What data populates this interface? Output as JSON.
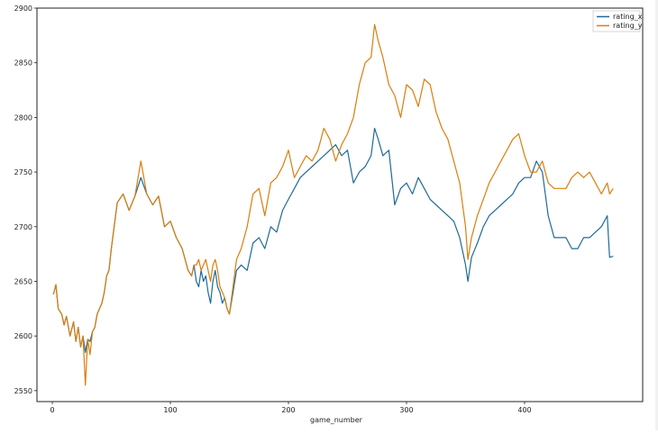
{
  "chart_data": {
    "type": "line",
    "title": "",
    "xlabel": "game_number",
    "ylabel": "",
    "xlim": [
      -13,
      500
    ],
    "ylim": [
      2540,
      2900
    ],
    "xticks": [
      0,
      100,
      200,
      300,
      400
    ],
    "yticks": [
      2550,
      2600,
      2650,
      2700,
      2750,
      2800,
      2850,
      2900
    ],
    "grid": false,
    "legend_position": "top-right",
    "series": [
      {
        "name": "rating_x",
        "color": "#1f6a97",
        "x": [
          1,
          3,
          5,
          8,
          10,
          12,
          15,
          18,
          20,
          22,
          24,
          26,
          28,
          30,
          32,
          34,
          36,
          38,
          40,
          42,
          44,
          46,
          48,
          50,
          55,
          60,
          65,
          70,
          75,
          80,
          85,
          90,
          95,
          100,
          105,
          110,
          115,
          118,
          120,
          122,
          124,
          126,
          128,
          130,
          132,
          134,
          136,
          138,
          140,
          142,
          144,
          146,
          148,
          150,
          153,
          156,
          160,
          165,
          170,
          175,
          180,
          185,
          190,
          195,
          200,
          205,
          210,
          215,
          220,
          225,
          230,
          235,
          240,
          245,
          250,
          255,
          260,
          265,
          270,
          273,
          276,
          280,
          285,
          290,
          295,
          300,
          305,
          310,
          315,
          320,
          325,
          330,
          335,
          340,
          345,
          350,
          352,
          355,
          360,
          365,
          370,
          375,
          380,
          385,
          390,
          395,
          400,
          405,
          410,
          415,
          420,
          425,
          430,
          435,
          440,
          445,
          450,
          455,
          460,
          465,
          470,
          472,
          475
        ],
        "y": [
          2638,
          2647,
          2625,
          2620,
          2610,
          2618,
          2600,
          2613,
          2595,
          2608,
          2590,
          2600,
          2585,
          2597,
          2595,
          2604,
          2608,
          2620,
          2625,
          2630,
          2640,
          2655,
          2660,
          2680,
          2722,
          2730,
          2715,
          2728,
          2745,
          2730,
          2720,
          2728,
          2700,
          2705,
          2690,
          2680,
          2660,
          2655,
          2665,
          2650,
          2645,
          2660,
          2650,
          2655,
          2640,
          2630,
          2650,
          2660,
          2645,
          2640,
          2630,
          2635,
          2625,
          2620,
          2640,
          2660,
          2665,
          2660,
          2685,
          2690,
          2680,
          2700,
          2695,
          2715,
          2725,
          2735,
          2745,
          2750,
          2755,
          2760,
          2765,
          2770,
          2775,
          2765,
          2770,
          2740,
          2750,
          2755,
          2765,
          2790,
          2780,
          2765,
          2770,
          2720,
          2735,
          2740,
          2730,
          2745,
          2735,
          2725,
          2720,
          2715,
          2710,
          2705,
          2690,
          2665,
          2650,
          2672,
          2685,
          2700,
          2710,
          2715,
          2720,
          2725,
          2730,
          2740,
          2745,
          2745,
          2760,
          2750,
          2710,
          2690,
          2690,
          2690,
          2680,
          2680,
          2690,
          2690,
          2695,
          2700,
          2710,
          2672,
          2673
        ]
      },
      {
        "name": "rating_y",
        "color": "#d97e0d",
        "x": [
          1,
          3,
          5,
          8,
          10,
          12,
          15,
          18,
          20,
          22,
          24,
          26,
          28,
          30,
          32,
          34,
          36,
          38,
          40,
          42,
          44,
          46,
          48,
          50,
          55,
          60,
          65,
          70,
          75,
          80,
          85,
          90,
          95,
          100,
          105,
          110,
          115,
          118,
          120,
          122,
          124,
          126,
          128,
          130,
          132,
          134,
          136,
          138,
          140,
          142,
          144,
          146,
          148,
          150,
          153,
          156,
          160,
          165,
          170,
          175,
          180,
          185,
          190,
          195,
          200,
          205,
          210,
          215,
          220,
          225,
          230,
          235,
          240,
          245,
          250,
          255,
          260,
          265,
          270,
          273,
          276,
          280,
          285,
          290,
          295,
          300,
          305,
          310,
          315,
          320,
          325,
          330,
          335,
          340,
          345,
          350,
          352,
          355,
          360,
          365,
          370,
          375,
          380,
          385,
          390,
          395,
          400,
          405,
          410,
          415,
          420,
          425,
          430,
          435,
          440,
          445,
          450,
          455,
          460,
          465,
          470,
          472,
          475
        ],
        "y": [
          2638,
          2647,
          2625,
          2620,
          2610,
          2618,
          2600,
          2613,
          2595,
          2608,
          2590,
          2600,
          2555,
          2597,
          2583,
          2604,
          2608,
          2620,
          2625,
          2630,
          2640,
          2655,
          2660,
          2680,
          2722,
          2730,
          2715,
          2728,
          2760,
          2730,
          2720,
          2728,
          2700,
          2705,
          2690,
          2680,
          2660,
          2655,
          2665,
          2665,
          2670,
          2660,
          2665,
          2670,
          2660,
          2650,
          2665,
          2670,
          2660,
          2645,
          2640,
          2635,
          2625,
          2620,
          2645,
          2670,
          2680,
          2700,
          2730,
          2735,
          2710,
          2740,
          2745,
          2755,
          2770,
          2745,
          2755,
          2765,
          2760,
          2770,
          2790,
          2780,
          2760,
          2775,
          2785,
          2800,
          2830,
          2850,
          2855,
          2885,
          2870,
          2855,
          2830,
          2820,
          2800,
          2830,
          2825,
          2810,
          2835,
          2830,
          2805,
          2790,
          2780,
          2760,
          2740,
          2700,
          2670,
          2690,
          2710,
          2725,
          2740,
          2750,
          2760,
          2770,
          2780,
          2785,
          2765,
          2750,
          2750,
          2760,
          2740,
          2735,
          2735,
          2735,
          2745,
          2750,
          2745,
          2750,
          2740,
          2730,
          2740,
          2730,
          2735
        ]
      }
    ]
  }
}
